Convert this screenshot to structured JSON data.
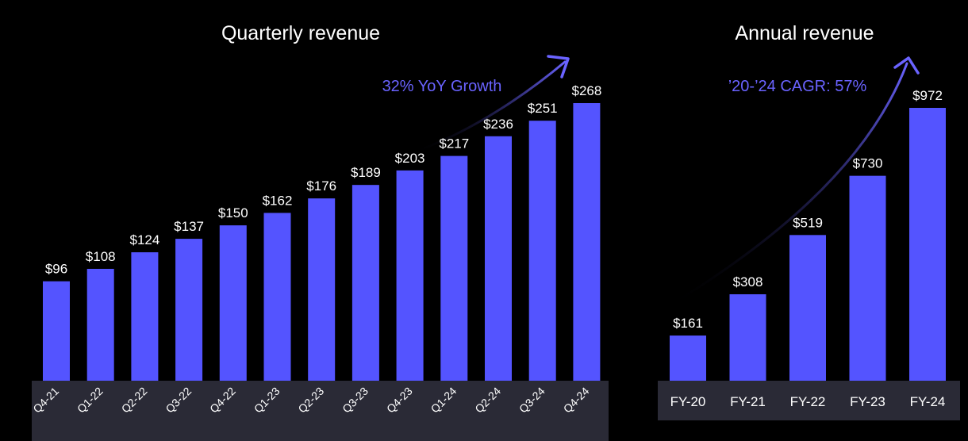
{
  "colors": {
    "background": "#000000",
    "bar": "#5454ff",
    "axis_band": "#2a2a36",
    "annotation": "#6a63ff",
    "text": "#ffffff"
  },
  "chart_data": [
    {
      "type": "bar",
      "title": "Quarterly revenue",
      "categories": [
        "Q4-21",
        "Q1-22",
        "Q2-22",
        "Q3-22",
        "Q4-22",
        "Q1-23",
        "Q2-23",
        "Q3-23",
        "Q4-23",
        "Q1-24",
        "Q2-24",
        "Q3-24",
        "Q4-24"
      ],
      "values": [
        96,
        108,
        124,
        137,
        150,
        162,
        176,
        189,
        203,
        217,
        236,
        251,
        268
      ],
      "value_labels": [
        "$96",
        "$108",
        "$124",
        "$137",
        "$150",
        "$162",
        "$176",
        "$189",
        "$203",
        "$217",
        "$236",
        "$251",
        "$268"
      ],
      "annotation": "32% YoY Growth",
      "xlabel": "",
      "ylabel": "",
      "grid": false,
      "legend": "none",
      "ylim": [
        0,
        268
      ]
    },
    {
      "type": "bar",
      "title": "Annual revenue",
      "categories": [
        "FY-20",
        "FY-21",
        "FY-22",
        "FY-23",
        "FY-24"
      ],
      "values": [
        161,
        308,
        519,
        730,
        972
      ],
      "value_labels": [
        "$161",
        "$308",
        "$519",
        "$730",
        "$972"
      ],
      "annotation": "’20-’24 CAGR: 57%",
      "xlabel": "",
      "ylabel": "",
      "grid": false,
      "legend": "none",
      "ylim": [
        0,
        972
      ]
    }
  ]
}
